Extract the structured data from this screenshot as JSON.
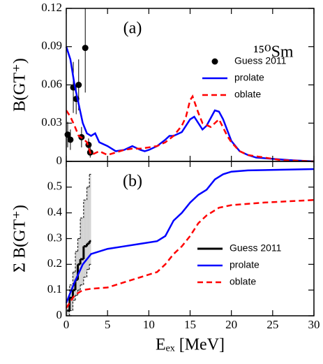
{
  "chart_data": [
    {
      "type": "line",
      "panel_label": "(a)",
      "annotation": "¹⁵⁰Sm",
      "ylabel": "B(GT⁺)",
      "xlim": [
        0,
        30
      ],
      "xticks": [
        0,
        5,
        10,
        15,
        20,
        25,
        30
      ],
      "show_xticklabels": false,
      "ylim": [
        0,
        0.12
      ],
      "yticks": [
        0,
        0.03,
        0.06,
        0.09,
        0.12
      ],
      "legend": "upper right",
      "series": [
        {
          "name": "Guess 2011",
          "color": "#000000",
          "mode": "markers",
          "x": [
            0.17,
            0.5,
            0.85,
            1.2,
            1.5,
            1.85,
            2.3,
            2.7,
            2.9
          ],
          "values": [
            0.021,
            0.017,
            0.058,
            0.049,
            0.06,
            0.019,
            0.089,
            0.013,
            0.007
          ],
          "errors": [
            0.01,
            0.008,
            0.02,
            0.012,
            0.02,
            0.008,
            0.035,
            0.005,
            0.004
          ]
        },
        {
          "name": "prolate",
          "color": "#0000ff",
          "mode": "line",
          "x": [
            0,
            0.5,
            1,
            1.5,
            2,
            2.5,
            3,
            3.5,
            4,
            5,
            6,
            7,
            8,
            9,
            9.5,
            10,
            11,
            12,
            12.5,
            13,
            14,
            15,
            15.5,
            16,
            16.5,
            17,
            18,
            18.5,
            19,
            20,
            21,
            22,
            23,
            25,
            27,
            30
          ],
          "values": [
            0.09,
            0.08,
            0.06,
            0.045,
            0.03,
            0.022,
            0.02,
            0.022,
            0.015,
            0.012,
            0.008,
            0.009,
            0.012,
            0.009,
            0.008,
            0.009,
            0.012,
            0.017,
            0.02,
            0.02,
            0.023,
            0.033,
            0.035,
            0.03,
            0.025,
            0.028,
            0.04,
            0.039,
            0.033,
            0.016,
            0.008,
            0.005,
            0.003,
            0.002,
            0.001,
            0
          ]
        },
        {
          "name": "oblate",
          "color": "#ff0000",
          "mode": "line",
          "dash": true,
          "x": [
            0,
            0.5,
            1,
            1.5,
            2,
            2.5,
            3,
            4,
            5,
            6,
            7,
            8,
            9,
            10,
            11,
            12,
            13,
            14,
            14.5,
            15,
            15.3,
            16,
            16.5,
            17.5,
            18.5,
            19.5,
            20,
            21,
            22,
            24,
            26,
            30
          ],
          "values": [
            0.04,
            0.035,
            0.028,
            0.02,
            0.018,
            0.015,
            0.005,
            0.008,
            0.005,
            0.007,
            0.009,
            0.01,
            0.01,
            0.011,
            0.012,
            0.015,
            0.02,
            0.028,
            0.035,
            0.048,
            0.051,
            0.038,
            0.03,
            0.027,
            0.033,
            0.02,
            0.015,
            0.008,
            0.005,
            0.003,
            0.001,
            0
          ]
        }
      ]
    },
    {
      "type": "line",
      "panel_label": "(b)",
      "ylabel": "Σ B(GT⁺)",
      "xlabel": "Eₑₓ [MeV]",
      "xlim": [
        0,
        30
      ],
      "xticks": [
        0,
        5,
        10,
        15,
        20,
        25,
        30
      ],
      "show_xticklabels": true,
      "ylim": [
        0,
        0.6
      ],
      "yticks": [
        0,
        0.1,
        0.2,
        0.3,
        0.4,
        0.5
      ],
      "legend": "lower right",
      "band": {
        "color": "#d3d3d3",
        "bins": [
          0.1,
          0.4,
          0.8,
          1.1,
          1.4,
          1.7,
          2.1,
          2.5,
          2.8,
          3.0
        ],
        "low": [
          0,
          0.02,
          0.06,
          0.08,
          0.1,
          0.12,
          0.15,
          0.18,
          0.2
        ],
        "high": [
          0.04,
          0.12,
          0.17,
          0.25,
          0.3,
          0.38,
          0.45,
          0.5,
          0.55
        ]
      },
      "series": [
        {
          "name": "Guess 2011",
          "color": "#000000",
          "mode": "step",
          "bins": [
            0.1,
            0.4,
            0.8,
            1.1,
            1.4,
            1.7,
            2.1,
            2.5,
            2.8,
            3.0
          ],
          "values": [
            0.02,
            0.07,
            0.1,
            0.14,
            0.2,
            0.22,
            0.27,
            0.28,
            0.29
          ]
        },
        {
          "name": "prolate",
          "color": "#0000ff",
          "mode": "line",
          "x": [
            0,
            1,
            2,
            3,
            5,
            7,
            9,
            11,
            12,
            13,
            14,
            15,
            16,
            17,
            18,
            19,
            20,
            22,
            30
          ],
          "values": [
            0.05,
            0.13,
            0.2,
            0.24,
            0.26,
            0.27,
            0.28,
            0.29,
            0.31,
            0.37,
            0.4,
            0.44,
            0.47,
            0.49,
            0.53,
            0.55,
            0.56,
            0.565,
            0.57
          ]
        },
        {
          "name": "oblate",
          "color": "#ff0000",
          "mode": "line",
          "dash": true,
          "x": [
            0,
            1,
            2,
            3,
            5,
            7,
            9,
            11,
            12,
            13,
            14,
            15,
            16,
            17,
            18.5,
            20,
            24,
            30
          ],
          "values": [
            0.03,
            0.08,
            0.1,
            0.105,
            0.11,
            0.13,
            0.15,
            0.17,
            0.2,
            0.24,
            0.27,
            0.31,
            0.36,
            0.39,
            0.42,
            0.43,
            0.44,
            0.45
          ]
        }
      ]
    }
  ]
}
